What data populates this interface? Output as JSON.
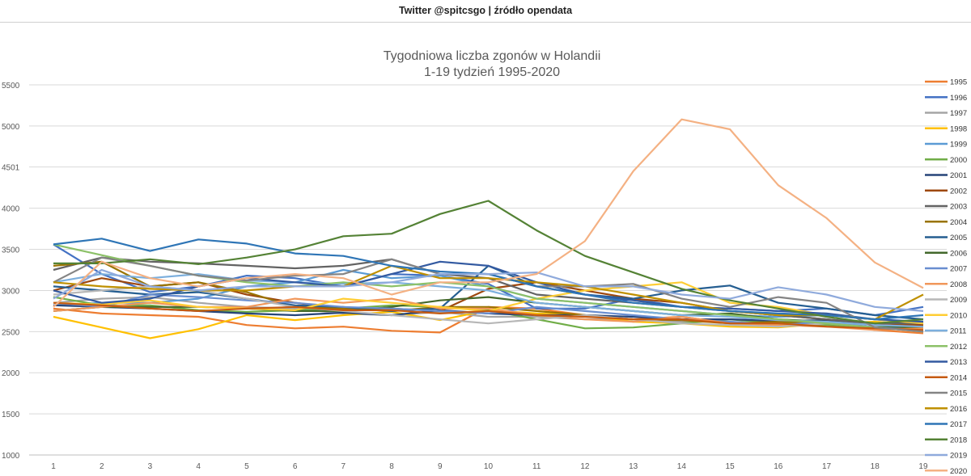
{
  "header": {
    "text": "Twitter @spitcsgo | źródło opendata"
  },
  "chart_data": {
    "type": "line",
    "title": "Tygodniowa liczba zgonów w Holandii",
    "subtitle": "1-19 tydzień 1995-2020",
    "x": [
      1,
      2,
      3,
      4,
      5,
      6,
      7,
      8,
      9,
      10,
      11,
      12,
      13,
      14,
      15,
      16,
      17,
      18,
      19
    ],
    "y_ticks": [
      1000,
      1500,
      2000,
      2500,
      3000,
      3500,
      4000,
      4501,
      5000,
      5500
    ],
    "ylim": [
      1000,
      5500
    ],
    "grid": true,
    "legend_position": "right",
    "series": [
      {
        "name": "1995",
        "color": "#ed7d31",
        "values": [
          2780,
          2720,
          2700,
          2680,
          2580,
          2540,
          2560,
          2510,
          2490,
          2800,
          2780,
          2700,
          2650,
          2680,
          2600,
          2580,
          2600,
          2520,
          2480
        ]
      },
      {
        "name": "1996",
        "color": "#4472c4",
        "values": [
          3560,
          3200,
          2980,
          3050,
          3180,
          3150,
          3050,
          3200,
          3180,
          3080,
          2780,
          2780,
          2900,
          2800,
          2780,
          2750,
          2780,
          2700,
          2800
        ]
      },
      {
        "name": "1997",
        "color": "#a5a5a5",
        "values": [
          2850,
          2900,
          2920,
          2850,
          2800,
          2780,
          2720,
          2700,
          2740,
          2680,
          2680,
          2650,
          2650,
          2620,
          2620,
          2600,
          2580,
          2560,
          2580
        ]
      },
      {
        "name": "1998",
        "color": "#ffc000",
        "values": [
          2680,
          2550,
          2420,
          2530,
          2700,
          2640,
          2700,
          2740,
          2640,
          2760,
          2720,
          2700,
          2620,
          2600,
          2560,
          2550,
          2600,
          2620,
          2580
        ]
      },
      {
        "name": "1999",
        "color": "#5b9bd5",
        "values": [
          2820,
          2850,
          2850,
          2900,
          3050,
          3100,
          3250,
          3150,
          3180,
          3050,
          2900,
          2850,
          2800,
          2750,
          2700,
          2680,
          2700,
          2650,
          2600
        ]
      },
      {
        "name": "2000",
        "color": "#70ad47",
        "values": [
          2920,
          2820,
          2820,
          2760,
          2740,
          2760,
          2780,
          2820,
          2800,
          2760,
          2650,
          2540,
          2550,
          2600,
          2650,
          2600,
          2580,
          2550,
          2600
        ]
      },
      {
        "name": "2001",
        "color": "#264478",
        "values": [
          2820,
          2800,
          2780,
          2750,
          2720,
          2700,
          2730,
          2700,
          2760,
          2720,
          2700,
          2700,
          2680,
          2650,
          2650,
          2630,
          2640,
          2600,
          2620
        ]
      },
      {
        "name": "2002",
        "color": "#9e480e",
        "values": [
          3000,
          3150,
          3050,
          3100,
          2950,
          2850,
          2780,
          2780,
          2750,
          3020,
          3100,
          3000,
          2900,
          2850,
          2750,
          2700,
          2650,
          2600,
          2580
        ]
      },
      {
        "name": "2003",
        "color": "#636363",
        "values": [
          3250,
          3400,
          3350,
          3330,
          3300,
          3270,
          3300,
          3380,
          3200,
          3150,
          2950,
          2900,
          2850,
          2800,
          2750,
          2700,
          2650,
          2600,
          2600
        ]
      },
      {
        "name": "2004",
        "color": "#997300",
        "values": [
          3300,
          3350,
          3050,
          3100,
          2980,
          2800,
          2780,
          2750,
          2800,
          2800,
          2750,
          2700,
          2650,
          2640,
          2600,
          2620,
          2600,
          2550,
          2550
        ]
      },
      {
        "name": "2005",
        "color": "#255e91",
        "values": [
          3050,
          3000,
          2950,
          2980,
          2900,
          2820,
          2800,
          2750,
          2780,
          3300,
          3050,
          2950,
          2900,
          3000,
          3060,
          2850,
          2780,
          2700,
          2650
        ]
      },
      {
        "name": "2006",
        "color": "#43682b",
        "values": [
          2750,
          2800,
          2800,
          2800,
          2780,
          2750,
          2750,
          2800,
          2880,
          2920,
          2850,
          2800,
          2750,
          2700,
          2720,
          2650,
          2620,
          2550,
          2560
        ]
      },
      {
        "name": "2007",
        "color": "#698ed0",
        "values": [
          2850,
          2800,
          2950,
          2920,
          2880,
          2850,
          2800,
          2780,
          2750,
          2720,
          2800,
          2750,
          2700,
          2650,
          2620,
          2580,
          2620,
          2550,
          2520
        ]
      },
      {
        "name": "2008",
        "color": "#f1975a",
        "values": [
          2750,
          2800,
          2850,
          2800,
          2800,
          2900,
          2850,
          2900,
          2780,
          2780,
          2700,
          2650,
          2620,
          2680,
          2600,
          2580,
          2560,
          2520,
          2540
        ]
      },
      {
        "name": "2009",
        "color": "#b7b7b7",
        "values": [
          2950,
          3000,
          3050,
          3000,
          2900,
          2800,
          2750,
          2700,
          2650,
          2600,
          2650,
          2700,
          2650,
          2600,
          2580,
          2560,
          2600,
          2550,
          2500
        ]
      },
      {
        "name": "2010",
        "color": "#ffcd33",
        "values": [
          2850,
          2830,
          2880,
          2800,
          2780,
          2760,
          2900,
          2850,
          2800,
          2750,
          2900,
          3000,
          3050,
          3100,
          2850,
          2800,
          2700,
          2650,
          2600
        ]
      },
      {
        "name": "2011",
        "color": "#7cafdd",
        "values": [
          3100,
          3200,
          3150,
          3200,
          3120,
          3100,
          3080,
          3100,
          3050,
          3000,
          2850,
          2800,
          2750,
          2700,
          2680,
          2640,
          2620,
          2580,
          2560
        ]
      },
      {
        "name": "2012",
        "color": "#8cc168",
        "values": [
          3560,
          3430,
          3300,
          3180,
          3100,
          3050,
          3100,
          3050,
          3100,
          3050,
          2900,
          2850,
          2800,
          2750,
          2700,
          2650,
          2600,
          2550,
          2500
        ]
      },
      {
        "name": "2013",
        "color": "#335aa1",
        "values": [
          3000,
          2850,
          2900,
          3050,
          3150,
          3100,
          3050,
          3200,
          3350,
          3300,
          3100,
          2950,
          2880,
          2800,
          2780,
          2750,
          2720,
          2650,
          2620
        ]
      },
      {
        "name": "2014",
        "color": "#c55a11",
        "values": [
          2850,
          2820,
          2780,
          2750,
          2780,
          2800,
          2760,
          2760,
          2720,
          2750,
          2700,
          2680,
          2650,
          2650,
          2600,
          2600,
          2560,
          2540,
          2520
        ]
      },
      {
        "name": "2015",
        "color": "#848484",
        "values": [
          3100,
          3400,
          3300,
          3180,
          3120,
          3180,
          3200,
          3380,
          3200,
          3200,
          3050,
          3050,
          3080,
          2900,
          2800,
          2920,
          2850,
          2550,
          2500
        ]
      },
      {
        "name": "2016",
        "color": "#bf9000",
        "values": [
          3100,
          3050,
          3020,
          3000,
          3000,
          3050,
          3050,
          3300,
          3150,
          3150,
          3100,
          3050,
          2950,
          2850,
          2750,
          2700,
          2700,
          2650,
          2950
        ]
      },
      {
        "name": "2017",
        "color": "#2e75b6",
        "values": [
          3560,
          3630,
          3480,
          3620,
          3570,
          3450,
          3420,
          3300,
          3230,
          3200,
          3050,
          2950,
          2850,
          2800,
          2750,
          2720,
          2700,
          2650,
          2700
        ]
      },
      {
        "name": "2018",
        "color": "#548235",
        "values": [
          3330,
          3330,
          3380,
          3320,
          3400,
          3500,
          3660,
          3690,
          3930,
          4090,
          3730,
          3420,
          3220,
          3020,
          2880,
          2780,
          2680,
          2600,
          2650
        ]
      },
      {
        "name": "2019",
        "color": "#8faadc",
        "values": [
          2900,
          3250,
          3050,
          3000,
          3050,
          3050,
          3050,
          3100,
          3200,
          3200,
          3220,
          3050,
          3050,
          2950,
          2900,
          3040,
          2950,
          2800,
          2750
        ]
      },
      {
        "name": "2020",
        "color": "#f4b183",
        "values": [
          2800,
          3350,
          3150,
          3050,
          3150,
          3200,
          3150,
          2950,
          3100,
          3100,
          3200,
          3600,
          4450,
          5080,
          4960,
          4280,
          3880,
          3340,
          3030
        ]
      }
    ]
  }
}
